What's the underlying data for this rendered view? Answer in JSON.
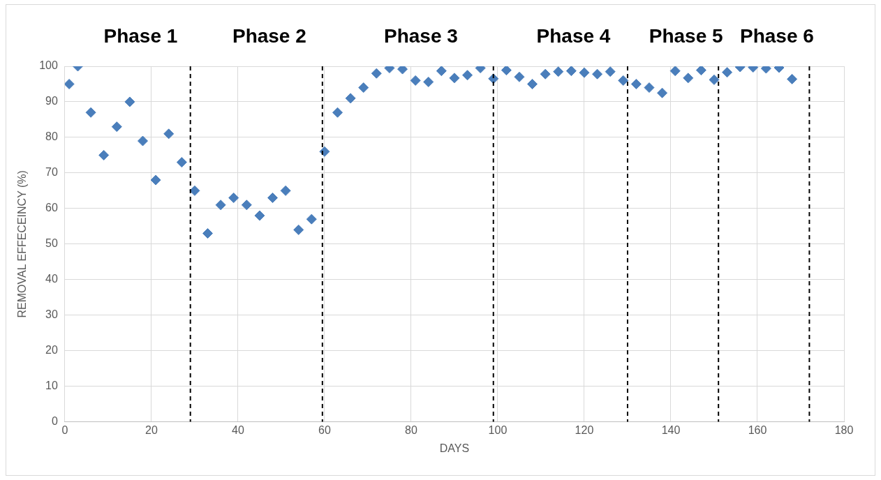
{
  "chart_data": {
    "type": "scatter",
    "xlabel": "DAYS",
    "ylabel": "REMOVAL EFFECEINCY (%)",
    "x": [
      1,
      3,
      6,
      9,
      12,
      15,
      18,
      21,
      24,
      27,
      30,
      33,
      36,
      39,
      42,
      45,
      48,
      51,
      54,
      57,
      60,
      63,
      66,
      69,
      72,
      75,
      78,
      81,
      84,
      87,
      90,
      93,
      96,
      99,
      102,
      105,
      108,
      111,
      114,
      117,
      120,
      123,
      126,
      129,
      132,
      135,
      138,
      141,
      144,
      147,
      150,
      153,
      156,
      159,
      162,
      165,
      168
    ],
    "series": [
      {
        "color": "#4a7ebb",
        "values": [
          95,
          100,
          87,
          75,
          83,
          90,
          79,
          68,
          81,
          73,
          65,
          53,
          61,
          63,
          61,
          58,
          63,
          65,
          54,
          57,
          76,
          87,
          91,
          94,
          98,
          99.5,
          99.2,
          96,
          95.6,
          98.7,
          96.7,
          97.5,
          99.5,
          96.5,
          98.9,
          97,
          95,
          97.8,
          98.5,
          98.7,
          98.2,
          97.8,
          98.5,
          96,
          95,
          94,
          92.5,
          98.7,
          96.7,
          98.9,
          96.2,
          98.3,
          99.8,
          99.7,
          99.4,
          99.6,
          96.4
        ]
      }
    ],
    "marker": "diamond",
    "grid": true,
    "legend": false,
    "xlim": [
      0,
      180
    ],
    "xticks": [
      0,
      20,
      40,
      60,
      80,
      100,
      120,
      140,
      160,
      180
    ],
    "ylim": [
      0,
      100
    ],
    "yticks": [
      0,
      10,
      20,
      30,
      40,
      50,
      60,
      70,
      80,
      90,
      100
    ],
    "ref_lines": [
      {
        "axis": "x",
        "value": 29,
        "color": "#000000",
        "line_style": "dashed"
      },
      {
        "axis": "x",
        "value": 59.5,
        "color": "#000000",
        "line_style": "dashed"
      },
      {
        "axis": "x",
        "value": 99,
        "color": "#000000",
        "line_style": "dashed"
      },
      {
        "axis": "x",
        "value": 130,
        "color": "#000000",
        "line_style": "dashed"
      },
      {
        "axis": "x",
        "value": 151,
        "color": "#000000",
        "line_style": "dashed"
      },
      {
        "axis": "x",
        "value": 172,
        "color": "#000000",
        "line_style": "dashed"
      }
    ],
    "annotations": [
      "Phase 1",
      "Phase 2",
      "Phase 3",
      "Phase 4",
      "Phase 5",
      "Phase 6"
    ]
  }
}
